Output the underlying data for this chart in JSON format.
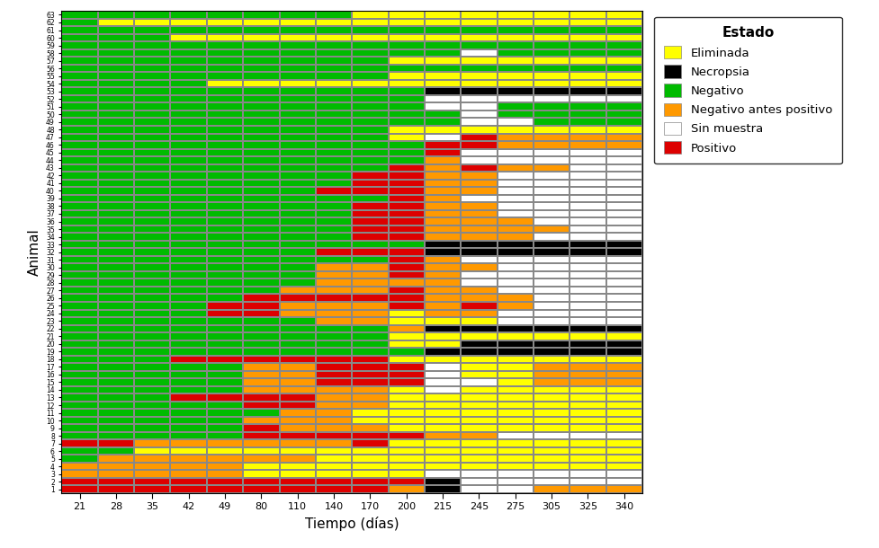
{
  "title": "",
  "xlabel": "Tiempo (días)",
  "ylabel": "Animal",
  "time_points": [
    21,
    28,
    35,
    42,
    49,
    80,
    110,
    140,
    170,
    200,
    215,
    245,
    275,
    305,
    325,
    340
  ],
  "animals": [
    1,
    2,
    3,
    4,
    5,
    6,
    7,
    8,
    9,
    10,
    11,
    12,
    13,
    14,
    15,
    16,
    17,
    18,
    19,
    20,
    21,
    22,
    23,
    24,
    25,
    26,
    27,
    28,
    29,
    30,
    31,
    32,
    33,
    34,
    35,
    36,
    37,
    38,
    39,
    40,
    41,
    42,
    43,
    44,
    45,
    46,
    47,
    48,
    49,
    50,
    51,
    52,
    53,
    54,
    55,
    56,
    57,
    58,
    59,
    60,
    61,
    62,
    63
  ],
  "color_codes": {
    "Y": "#FFFF00",
    "K": "#000000",
    "G": "#00BB00",
    "O": "#FF9900",
    "W": "#FFFFFF",
    "R": "#DD0000"
  },
  "grid_color": "#888888",
  "legend_title": "Estado",
  "legend_entries": [
    "Eliminada",
    "Necropsia",
    "Negativo",
    "Negativo antes positivo",
    "Sin muestra",
    "Positivo"
  ],
  "legend_colors": [
    "#FFFF00",
    "#000000",
    "#00BB00",
    "#FF9900",
    "#FFFFFF",
    "#DD0000"
  ],
  "data": {
    "1": [
      "R",
      "R",
      "R",
      "R",
      "R",
      "R",
      "R",
      "R",
      "R",
      "O",
      "K",
      "W",
      "W",
      "O",
      "O",
      "O"
    ],
    "2": [
      "R",
      "R",
      "R",
      "R",
      "R",
      "R",
      "R",
      "R",
      "R",
      "R",
      "K",
      "W",
      "W",
      "W",
      "W",
      "W"
    ],
    "3": [
      "O",
      "O",
      "O",
      "O",
      "O",
      "Y",
      "Y",
      "Y",
      "Y",
      "Y",
      "W",
      "W",
      "W",
      "W",
      "W",
      "W"
    ],
    "4": [
      "O",
      "O",
      "O",
      "O",
      "O",
      "Y",
      "Y",
      "Y",
      "Y",
      "Y",
      "Y",
      "Y",
      "Y",
      "Y",
      "Y",
      "Y"
    ],
    "5": [
      "G",
      "O",
      "O",
      "O",
      "O",
      "O",
      "O",
      "Y",
      "Y",
      "Y",
      "Y",
      "Y",
      "Y",
      "Y",
      "Y",
      "Y"
    ],
    "6": [
      "G",
      "G",
      "Y",
      "Y",
      "Y",
      "Y",
      "Y",
      "Y",
      "Y",
      "Y",
      "Y",
      "Y",
      "Y",
      "Y",
      "Y",
      "Y"
    ],
    "7": [
      "R",
      "R",
      "O",
      "O",
      "O",
      "O",
      "O",
      "O",
      "R",
      "Y",
      "Y",
      "Y",
      "Y",
      "Y",
      "Y",
      "Y"
    ],
    "8": [
      "G",
      "G",
      "G",
      "G",
      "G",
      "R",
      "R",
      "R",
      "R",
      "R",
      "O",
      "O",
      "W",
      "W",
      "W",
      "W"
    ],
    "9": [
      "G",
      "G",
      "G",
      "G",
      "G",
      "R",
      "O",
      "O",
      "O",
      "Y",
      "Y",
      "Y",
      "Y",
      "Y",
      "Y",
      "Y"
    ],
    "10": [
      "G",
      "G",
      "G",
      "G",
      "G",
      "O",
      "O",
      "O",
      "Y",
      "Y",
      "Y",
      "Y",
      "Y",
      "Y",
      "Y",
      "Y"
    ],
    "11": [
      "G",
      "G",
      "G",
      "G",
      "G",
      "G",
      "O",
      "O",
      "Y",
      "Y",
      "Y",
      "Y",
      "Y",
      "Y",
      "Y",
      "Y"
    ],
    "12": [
      "G",
      "G",
      "G",
      "G",
      "G",
      "R",
      "R",
      "O",
      "O",
      "Y",
      "Y",
      "Y",
      "Y",
      "Y",
      "Y",
      "Y"
    ],
    "13": [
      "G",
      "G",
      "G",
      "R",
      "R",
      "R",
      "R",
      "O",
      "O",
      "Y",
      "Y",
      "Y",
      "Y",
      "Y",
      "Y",
      "Y"
    ],
    "14": [
      "G",
      "G",
      "G",
      "G",
      "G",
      "O",
      "O",
      "O",
      "O",
      "Y",
      "W",
      "Y",
      "Y",
      "Y",
      "Y",
      "Y"
    ],
    "15": [
      "G",
      "G",
      "G",
      "G",
      "G",
      "O",
      "O",
      "R",
      "R",
      "R",
      "W",
      "W",
      "Y",
      "O",
      "O",
      "O"
    ],
    "16": [
      "G",
      "G",
      "G",
      "G",
      "G",
      "O",
      "O",
      "R",
      "R",
      "R",
      "W",
      "Y",
      "Y",
      "O",
      "O",
      "O"
    ],
    "17": [
      "G",
      "G",
      "G",
      "G",
      "G",
      "O",
      "O",
      "R",
      "R",
      "R",
      "W",
      "Y",
      "Y",
      "O",
      "O",
      "O"
    ],
    "18": [
      "G",
      "G",
      "G",
      "R",
      "R",
      "R",
      "R",
      "R",
      "R",
      "Y",
      "Y",
      "Y",
      "Y",
      "Y",
      "Y",
      "Y"
    ],
    "19": [
      "G",
      "G",
      "G",
      "G",
      "G",
      "G",
      "G",
      "G",
      "G",
      "G",
      "K",
      "K",
      "K",
      "K",
      "K",
      "K"
    ],
    "20": [
      "G",
      "G",
      "G",
      "G",
      "G",
      "G",
      "G",
      "G",
      "G",
      "Y",
      "Y",
      "K",
      "K",
      "K",
      "K",
      "K"
    ],
    "21": [
      "G",
      "G",
      "G",
      "G",
      "G",
      "G",
      "G",
      "G",
      "G",
      "Y",
      "Y",
      "Y",
      "Y",
      "Y",
      "Y",
      "Y"
    ],
    "22": [
      "G",
      "G",
      "G",
      "G",
      "G",
      "G",
      "G",
      "G",
      "G",
      "O",
      "K",
      "K",
      "K",
      "K",
      "K",
      "K"
    ],
    "23": [
      "G",
      "G",
      "G",
      "G",
      "G",
      "G",
      "G",
      "O",
      "O",
      "Y",
      "Y",
      "Y",
      "W",
      "W",
      "W",
      "W"
    ],
    "24": [
      "G",
      "G",
      "G",
      "G",
      "R",
      "R",
      "O",
      "O",
      "O",
      "Y",
      "O",
      "O",
      "W",
      "W",
      "W",
      "W"
    ],
    "25": [
      "G",
      "G",
      "G",
      "G",
      "R",
      "R",
      "O",
      "O",
      "O",
      "R",
      "O",
      "R",
      "O",
      "W",
      "W",
      "W"
    ],
    "26": [
      "G",
      "G",
      "G",
      "G",
      "G",
      "R",
      "R",
      "R",
      "R",
      "R",
      "O",
      "O",
      "O",
      "W",
      "W",
      "W"
    ],
    "27": [
      "G",
      "G",
      "G",
      "G",
      "G",
      "G",
      "O",
      "O",
      "O",
      "R",
      "O",
      "O",
      "W",
      "W",
      "W",
      "W"
    ],
    "28": [
      "G",
      "G",
      "G",
      "G",
      "G",
      "G",
      "G",
      "O",
      "O",
      "O",
      "O",
      "W",
      "W",
      "W",
      "W",
      "W"
    ],
    "29": [
      "G",
      "G",
      "G",
      "G",
      "G",
      "G",
      "G",
      "O",
      "O",
      "R",
      "O",
      "W",
      "W",
      "W",
      "W",
      "W"
    ],
    "30": [
      "G",
      "G",
      "G",
      "G",
      "G",
      "G",
      "G",
      "O",
      "O",
      "R",
      "O",
      "O",
      "W",
      "W",
      "W",
      "W"
    ],
    "31": [
      "G",
      "G",
      "G",
      "G",
      "G",
      "G",
      "G",
      "G",
      "G",
      "R",
      "O",
      "W",
      "W",
      "W",
      "W",
      "W"
    ],
    "32": [
      "G",
      "G",
      "G",
      "G",
      "G",
      "G",
      "G",
      "R",
      "R",
      "R",
      "K",
      "K",
      "K",
      "K",
      "K",
      "K"
    ],
    "33": [
      "G",
      "G",
      "G",
      "G",
      "G",
      "G",
      "G",
      "G",
      "G",
      "G",
      "K",
      "K",
      "K",
      "K",
      "K",
      "K"
    ],
    "34": [
      "G",
      "G",
      "G",
      "G",
      "G",
      "G",
      "G",
      "G",
      "R",
      "R",
      "O",
      "O",
      "O",
      "W",
      "W",
      "W"
    ],
    "35": [
      "G",
      "G",
      "G",
      "G",
      "G",
      "G",
      "G",
      "G",
      "R",
      "R",
      "O",
      "O",
      "O",
      "O",
      "W",
      "W"
    ],
    "36": [
      "G",
      "G",
      "G",
      "G",
      "G",
      "G",
      "G",
      "G",
      "R",
      "R",
      "O",
      "O",
      "O",
      "W",
      "W",
      "W"
    ],
    "37": [
      "G",
      "G",
      "G",
      "G",
      "G",
      "G",
      "G",
      "G",
      "R",
      "R",
      "O",
      "O",
      "W",
      "W",
      "W",
      "W"
    ],
    "38": [
      "G",
      "G",
      "G",
      "G",
      "G",
      "G",
      "G",
      "G",
      "R",
      "R",
      "O",
      "O",
      "W",
      "W",
      "W",
      "W"
    ],
    "39": [
      "G",
      "G",
      "G",
      "G",
      "G",
      "G",
      "G",
      "G",
      "G",
      "R",
      "O",
      "W",
      "W",
      "W",
      "W",
      "W"
    ],
    "40": [
      "G",
      "G",
      "G",
      "G",
      "G",
      "G",
      "G",
      "R",
      "R",
      "R",
      "O",
      "O",
      "W",
      "W",
      "W",
      "W"
    ],
    "41": [
      "G",
      "G",
      "G",
      "G",
      "G",
      "G",
      "G",
      "G",
      "R",
      "R",
      "O",
      "O",
      "W",
      "W",
      "W",
      "W"
    ],
    "42": [
      "G",
      "G",
      "G",
      "G",
      "G",
      "G",
      "G",
      "G",
      "R",
      "R",
      "O",
      "O",
      "W",
      "W",
      "W",
      "W"
    ],
    "43": [
      "G",
      "G",
      "G",
      "G",
      "G",
      "G",
      "G",
      "G",
      "G",
      "R",
      "O",
      "R",
      "O",
      "O",
      "W",
      "W"
    ],
    "44": [
      "G",
      "G",
      "G",
      "G",
      "G",
      "G",
      "G",
      "G",
      "G",
      "G",
      "O",
      "W",
      "W",
      "W",
      "W",
      "W"
    ],
    "45": [
      "G",
      "G",
      "G",
      "G",
      "G",
      "G",
      "G",
      "G",
      "G",
      "G",
      "R",
      "W",
      "W",
      "W",
      "W",
      "W"
    ],
    "46": [
      "G",
      "G",
      "G",
      "G",
      "G",
      "G",
      "G",
      "G",
      "G",
      "G",
      "R",
      "R",
      "O",
      "O",
      "O",
      "O"
    ],
    "47": [
      "G",
      "G",
      "G",
      "G",
      "G",
      "G",
      "G",
      "G",
      "G",
      "Y",
      "W",
      "R",
      "O",
      "O",
      "O",
      "O"
    ],
    "48": [
      "G",
      "G",
      "G",
      "G",
      "G",
      "G",
      "G",
      "G",
      "G",
      "Y",
      "Y",
      "Y",
      "Y",
      "Y",
      "Y",
      "Y"
    ],
    "49": [
      "G",
      "G",
      "G",
      "G",
      "G",
      "G",
      "G",
      "G",
      "G",
      "G",
      "G",
      "W",
      "W",
      "G",
      "G",
      "G"
    ],
    "50": [
      "G",
      "G",
      "G",
      "G",
      "G",
      "G",
      "G",
      "G",
      "G",
      "G",
      "G",
      "W",
      "G",
      "G",
      "G",
      "G"
    ],
    "51": [
      "G",
      "G",
      "G",
      "G",
      "G",
      "G",
      "G",
      "G",
      "G",
      "G",
      "W",
      "W",
      "G",
      "G",
      "G",
      "G"
    ],
    "52": [
      "G",
      "G",
      "G",
      "G",
      "G",
      "G",
      "G",
      "G",
      "G",
      "G",
      "W",
      "W",
      "W",
      "W",
      "W",
      "W"
    ],
    "53": [
      "G",
      "G",
      "G",
      "G",
      "G",
      "G",
      "G",
      "G",
      "G",
      "G",
      "K",
      "K",
      "K",
      "K",
      "K",
      "K"
    ],
    "54": [
      "G",
      "G",
      "G",
      "G",
      "Y",
      "Y",
      "Y",
      "Y",
      "Y",
      "Y",
      "Y",
      "Y",
      "Y",
      "Y",
      "Y",
      "Y"
    ],
    "55": [
      "G",
      "G",
      "G",
      "G",
      "G",
      "G",
      "G",
      "G",
      "G",
      "Y",
      "Y",
      "Y",
      "Y",
      "Y",
      "Y",
      "Y"
    ],
    "56": [
      "G",
      "G",
      "G",
      "G",
      "G",
      "G",
      "G",
      "G",
      "G",
      "G",
      "G",
      "G",
      "G",
      "G",
      "G",
      "G"
    ],
    "57": [
      "G",
      "G",
      "G",
      "G",
      "G",
      "G",
      "G",
      "G",
      "G",
      "Y",
      "Y",
      "Y",
      "Y",
      "Y",
      "Y",
      "Y"
    ],
    "58": [
      "G",
      "G",
      "G",
      "G",
      "G",
      "G",
      "G",
      "G",
      "G",
      "G",
      "G",
      "W",
      "G",
      "G",
      "G",
      "G"
    ],
    "59": [
      "G",
      "G",
      "G",
      "G",
      "G",
      "G",
      "G",
      "G",
      "G",
      "G",
      "G",
      "G",
      "G",
      "G",
      "G",
      "G"
    ],
    "60": [
      "G",
      "G",
      "G",
      "Y",
      "Y",
      "Y",
      "Y",
      "Y",
      "Y",
      "Y",
      "Y",
      "Y",
      "Y",
      "Y",
      "Y",
      "Y"
    ],
    "61": [
      "G",
      "G",
      "G",
      "G",
      "G",
      "G",
      "G",
      "G",
      "G",
      "G",
      "G",
      "G",
      "G",
      "G",
      "G",
      "G"
    ],
    "62": [
      "G",
      "Y",
      "Y",
      "Y",
      "Y",
      "Y",
      "Y",
      "Y",
      "Y",
      "Y",
      "Y",
      "Y",
      "Y",
      "Y",
      "Y",
      "Y"
    ],
    "63": [
      "G",
      "G",
      "G",
      "G",
      "G",
      "G",
      "G",
      "G",
      "Y",
      "Y",
      "Y",
      "Y",
      "Y",
      "Y",
      "Y",
      "Y"
    ]
  }
}
